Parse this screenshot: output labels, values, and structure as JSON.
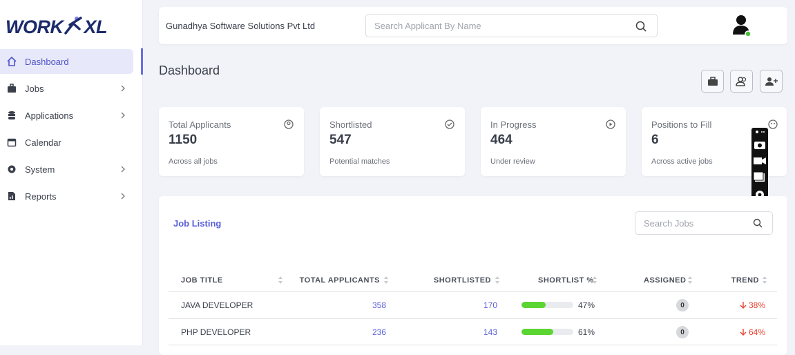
{
  "brand": {
    "left": "WORK",
    "right": "XL"
  },
  "nav": [
    "Dashboard",
    "Jobs",
    "Applications",
    "Calendar",
    "System",
    "Reports"
  ],
  "header": {
    "company": "Gunadhya Software Solutions Pvt Ltd",
    "search_placeholder": "Search Applicant By Name"
  },
  "page_title": "Dashboard",
  "stats": [
    {
      "label": "Total Applicants",
      "value": "1150",
      "sub": "Across all jobs"
    },
    {
      "label": "Shortlisted",
      "value": "547",
      "sub": "Potential matches"
    },
    {
      "label": "In Progress",
      "value": "464",
      "sub": "Under review"
    },
    {
      "label": "Positions to Fill",
      "value": "6",
      "sub": "Across active jobs"
    }
  ],
  "job_listing": {
    "title": "Job Listing",
    "search_placeholder": "Search Jobs",
    "columns": [
      "JOB TITLE",
      "TOTAL APPLICANTS",
      "SHORTLISTED",
      "SHORTLIST %",
      "ASSIGNED",
      "TREND"
    ],
    "rows": [
      {
        "title": "JAVA DEVELOPER",
        "total": "358",
        "shortlisted": "170",
        "pct": {
          "value": 47,
          "label": "47%"
        },
        "assigned": "0",
        "trend": "38%"
      },
      {
        "title": "PHP DEVELOPER",
        "total": "236",
        "shortlisted": "143",
        "pct": {
          "value": 61,
          "label": "61%"
        },
        "assigned": "0",
        "trend": "64%"
      }
    ]
  }
}
